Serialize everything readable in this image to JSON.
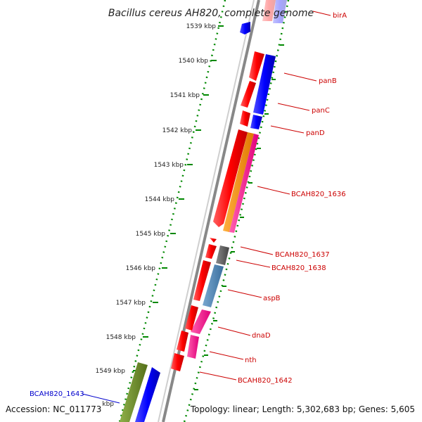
{
  "title": "Bacillus cereus AH820, complete genome",
  "footer": {
    "accession": "Accession: NC_011773",
    "topology": "Topology: linear; Length: 5,302,683 bp; Genes: 5,605"
  },
  "scale_ticks": [
    "1539 kbp",
    "1540 kbp",
    "1541 kbp",
    "1542 kbp",
    "1543 kbp",
    "1544 kbp",
    "1545 kbp",
    "1546 kbp",
    "1547 kbp",
    "1548 kbp",
    "1549 kbp",
    "kbp"
  ],
  "gene_labels": [
    "birA",
    "panB",
    "panC",
    "panD",
    "BCAH820_1636",
    "BCAH820_1637",
    "BCAH820_1638",
    "aspB",
    "dnaD",
    "nth",
    "BCAH820_1642",
    "BCAH820_1643"
  ],
  "colors": {
    "gene_red": "#ff0000",
    "gene_blue": "#0000ff",
    "gene_orange": "#ff8c00",
    "gene_magenta": "#ff1493",
    "gene_gray": "#555555",
    "gene_steelblue": "#4682b4",
    "gene_olive": "#6b8e23",
    "backbone": "#888888",
    "tick_green": "#008800",
    "label_red": "#cc0000",
    "label_blue": "#0000cc"
  }
}
